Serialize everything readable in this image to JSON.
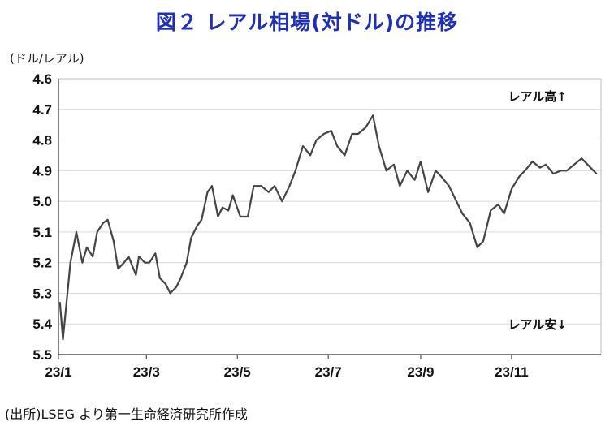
{
  "title": "図２ レアル相場(対ドル)の推移",
  "unit_label": "(ドル/レアル)",
  "source": "(出所)LSEG より第一生命経済研究所作成",
  "annotations": {
    "top": "レアル高↑",
    "bottom": "レアル安↓"
  },
  "colors": {
    "title": "#1f2fb8",
    "line": "#444444",
    "grid": "#d9d9d9",
    "axis": "#333333"
  },
  "chart_data": {
    "type": "line",
    "title": "図２ レアル相場(対ドル)の推移",
    "ylabel": "(ドル/レアル)",
    "ylim": [
      4.6,
      5.5
    ],
    "y_inverted": true,
    "yticks": [
      "4.6",
      "4.7",
      "4.8",
      "4.9",
      "5.0",
      "5.1",
      "5.2",
      "5.3",
      "5.4",
      "5.5"
    ],
    "xticks": [
      "23/1",
      "23/3",
      "23/5",
      "23/7",
      "23/9",
      "23/11"
    ],
    "x_range": [
      "23/1",
      "23/12"
    ],
    "grid": "horizontal",
    "series": [
      {
        "x": [
          "1/2",
          "1/4",
          "1/6",
          "1/9",
          "1/11",
          "1/13",
          "1/17",
          "1/20",
          "1/24",
          "1/27",
          "1/31",
          "2/3",
          "2/7",
          "2/10",
          "2/14",
          "2/17",
          "2/22",
          "2/24",
          "2/28",
          "3/3",
          "3/7",
          "3/10",
          "3/14",
          "3/17",
          "3/21",
          "3/24",
          "3/28",
          "3/31",
          "4/4",
          "4/7",
          "4/11",
          "4/14",
          "4/18",
          "4/21",
          "4/25",
          "4/28",
          "5/3",
          "5/8",
          "5/12",
          "5/17",
          "5/22",
          "5/26",
          "5/31",
          "6/5",
          "6/9",
          "6/14",
          "6/19",
          "6/23",
          "6/28",
          "7/3",
          "7/7",
          "7/12",
          "7/17",
          "7/21",
          "7/26",
          "7/31",
          "8/4",
          "8/9",
          "8/14",
          "8/18",
          "8/23",
          "8/28",
          "9/1",
          "9/6",
          "9/11",
          "9/15",
          "9/20",
          "9/25",
          "9/29",
          "10/4",
          "10/9",
          "10/13",
          "10/18",
          "10/23",
          "10/27",
          "11/1",
          "11/6",
          "11/10",
          "11/15",
          "11/20",
          "11/24",
          "11/29",
          "12/4",
          "12/8",
          "12/13",
          "12/18",
          "12/22",
          "12/28"
        ],
        "values": [
          5.33,
          5.45,
          5.35,
          5.2,
          5.15,
          5.1,
          5.2,
          5.15,
          5.18,
          5.1,
          5.07,
          5.06,
          5.13,
          5.22,
          5.2,
          5.18,
          5.24,
          5.18,
          5.2,
          5.2,
          5.17,
          5.25,
          5.27,
          5.3,
          5.28,
          5.25,
          5.2,
          5.12,
          5.08,
          5.06,
          4.97,
          4.95,
          5.05,
          5.02,
          5.03,
          4.98,
          5.05,
          5.05,
          4.95,
          4.95,
          4.97,
          4.95,
          5.0,
          4.95,
          4.9,
          4.82,
          4.85,
          4.8,
          4.78,
          4.77,
          4.82,
          4.85,
          4.78,
          4.78,
          4.76,
          4.72,
          4.82,
          4.9,
          4.88,
          4.95,
          4.9,
          4.93,
          4.87,
          4.97,
          4.9,
          4.92,
          4.95,
          5.0,
          5.04,
          5.07,
          5.15,
          5.13,
          5.03,
          5.01,
          5.04,
          4.96,
          4.92,
          4.9,
          4.87,
          4.89,
          4.88,
          4.91,
          4.9,
          4.9,
          4.88,
          4.86,
          4.88,
          4.91
        ]
      }
    ]
  }
}
